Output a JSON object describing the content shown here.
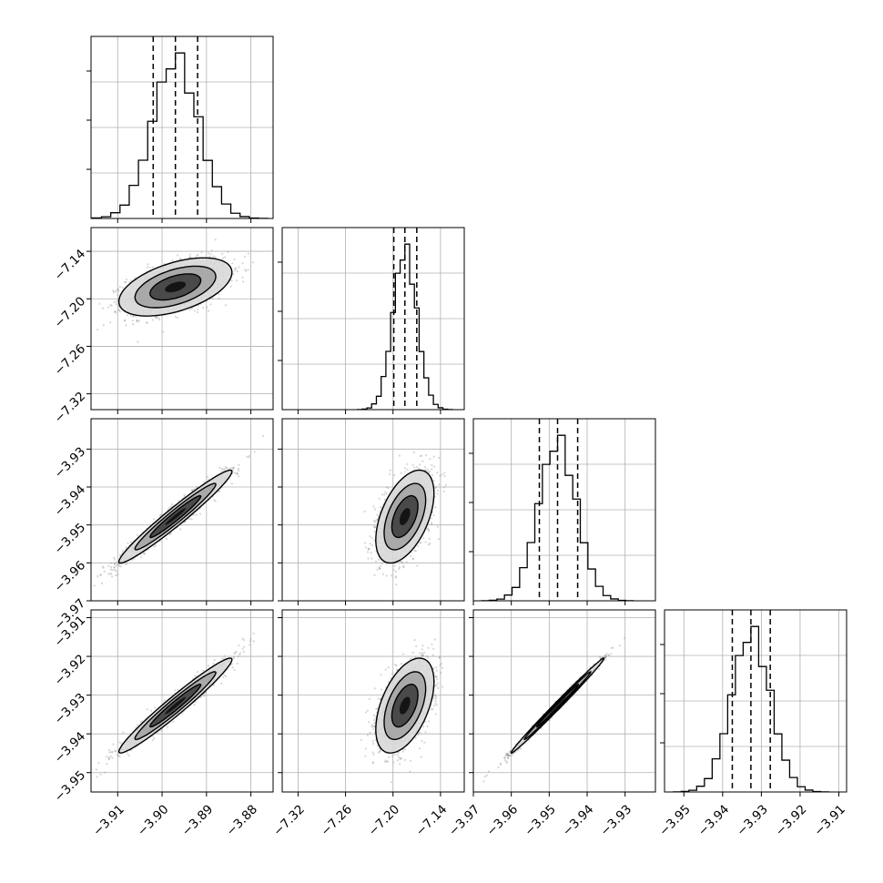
{
  "chart_data": {
    "type": "corner",
    "n_parameters": 4,
    "grid": true,
    "colors": {
      "frame": "#000000",
      "grid": "#b0b0b0",
      "points": "#8c8c8c",
      "contour": "#000000",
      "fill_light": "#d9d9d9",
      "fill_mid": "#a6a6a6",
      "fill_dark": "#444444",
      "fill_core": "#111111"
    },
    "parameters": [
      {
        "range": [
          -3.916,
          -3.875
        ],
        "ticks": [
          -3.91,
          -3.9,
          -3.89,
          -3.88
        ],
        "tick_labels": [
          "−3.91",
          "−3.90",
          "−3.89",
          "−3.88"
        ],
        "median": -3.897,
        "q16": -3.902,
        "q84": -3.892,
        "sigma": 0.0052,
        "show_y_label": false
      },
      {
        "range": [
          -7.34,
          -7.11
        ],
        "ticks": [
          -7.32,
          -7.26,
          -7.2,
          -7.14
        ],
        "tick_labels": [
          "−7.32",
          "−7.26",
          "−7.20",
          "−7.14"
        ],
        "median": -7.185,
        "q16": -7.199,
        "q84": -7.17,
        "sigma": 0.015,
        "show_y_label": true
      },
      {
        "range": [
          -3.97,
          -3.922
        ],
        "ticks": [
          -3.97,
          -3.96,
          -3.95,
          -3.94,
          -3.93
        ],
        "tick_labels": [
          "−3.97",
          "−3.96",
          "−3.95",
          "−3.94",
          "−3.93"
        ],
        "median": -3.9478,
        "q16": -3.9526,
        "q84": -3.9425,
        "sigma": 0.005,
        "show_y_label": true
      },
      {
        "range": [
          -3.955,
          -3.908
        ],
        "ticks": [
          -3.95,
          -3.94,
          -3.93,
          -3.92,
          -3.91
        ],
        "tick_labels": [
          "−3.95",
          "−3.94",
          "−3.93",
          "−3.92",
          "−3.91"
        ],
        "median": -3.9327,
        "q16": -3.9375,
        "q84": -3.9277,
        "sigma": 0.005,
        "show_y_label": true
      }
    ],
    "correlations": [
      {
        "pair": [
          1,
          0
        ],
        "rho": 0.5
      },
      {
        "pair": [
          2,
          0
        ],
        "rho": 0.97
      },
      {
        "pair": [
          2,
          1
        ],
        "rho": 0.5
      },
      {
        "pair": [
          3,
          0
        ],
        "rho": 0.97
      },
      {
        "pair": [
          3,
          1
        ],
        "rho": 0.5
      },
      {
        "pair": [
          3,
          2
        ],
        "rho": 0.995
      }
    ],
    "histogram_bins": 20,
    "quantiles": [
      0.16,
      0.5,
      0.84
    ]
  }
}
